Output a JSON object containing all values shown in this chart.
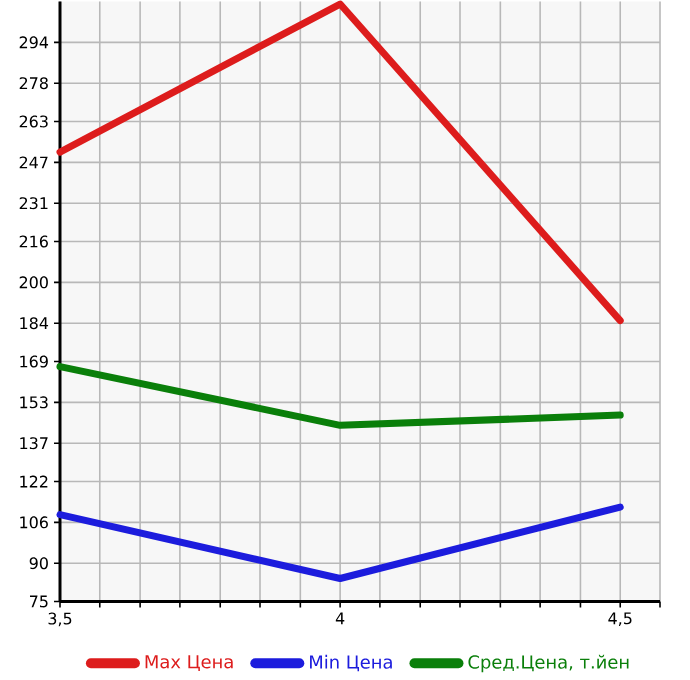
{
  "chart_data": {
    "type": "line",
    "x": [
      3.5,
      4,
      4.5
    ],
    "series": [
      {
        "name": "Max Цена",
        "color": "#dd1c1c",
        "values": [
          251,
          309,
          185
        ]
      },
      {
        "name": "Min Цена",
        "color": "#1c1cdd",
        "values": [
          109,
          84,
          112
        ]
      },
      {
        "name": "Сред.Цена, т.йен",
        "color": "#0a7f0a",
        "values": [
          167,
          144,
          148
        ]
      }
    ],
    "xlim": [
      3.5,
      4.571
    ],
    "xticks": [
      {
        "value": 3.5,
        "label": "3,5"
      },
      {
        "value": 3.571,
        "label": null
      },
      {
        "value": 3.643,
        "label": null
      },
      {
        "value": 3.714,
        "label": null
      },
      {
        "value": 3.786,
        "label": null
      },
      {
        "value": 3.857,
        "label": null
      },
      {
        "value": 3.929,
        "label": null
      },
      {
        "value": 4,
        "label": "4"
      },
      {
        "value": 4.071,
        "label": null
      },
      {
        "value": 4.143,
        "label": null
      },
      {
        "value": 4.214,
        "label": null
      },
      {
        "value": 4.286,
        "label": null
      },
      {
        "value": 4.357,
        "label": null
      },
      {
        "value": 4.429,
        "label": null
      },
      {
        "value": 4.5,
        "label": "4,5"
      },
      {
        "value": 4.571,
        "label": null
      }
    ],
    "ylim": [
      75,
      310
    ],
    "yticks": [
      75,
      90,
      106,
      122,
      137,
      153,
      169,
      184,
      200,
      216,
      231,
      247,
      263,
      278,
      294
    ],
    "grid": true,
    "legend": "bottom",
    "marker": "none",
    "line_style": "solid"
  }
}
